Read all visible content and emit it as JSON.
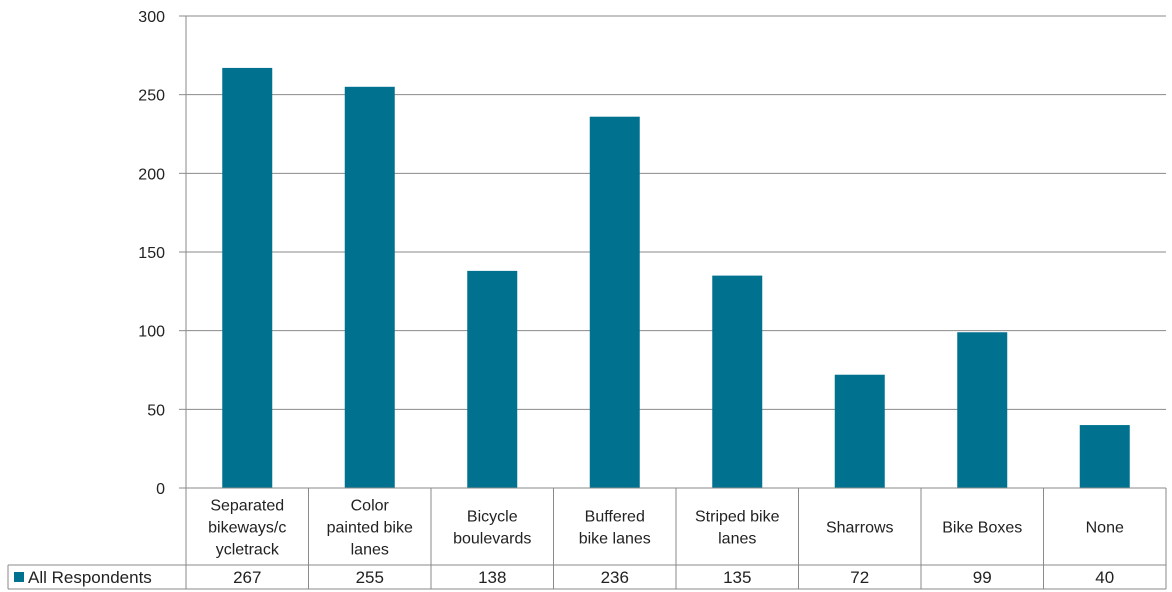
{
  "chart_data": {
    "type": "bar",
    "categories": [
      "Separated bikeways/cycletrack",
      "Color painted bike lanes",
      "Bicycle boulevards",
      "Buffered bike lanes",
      "Striped bike lanes",
      "Sharrows",
      "Bike Boxes",
      "None"
    ],
    "category_lines": [
      [
        "Separated",
        "bikeways/c",
        "ycletrack"
      ],
      [
        "Color",
        "painted bike",
        "lanes"
      ],
      [
        "Bicycle",
        "boulevards"
      ],
      [
        "Buffered",
        "bike lanes"
      ],
      [
        "Striped bike",
        "lanes"
      ],
      [
        "Sharrows"
      ],
      [
        "Bike Boxes"
      ],
      [
        "None"
      ]
    ],
    "series": [
      {
        "name": "All Respondents",
        "values": [
          267,
          255,
          138,
          236,
          135,
          72,
          99,
          40
        ],
        "color": "#00728F"
      }
    ],
    "ylim": [
      0,
      300
    ],
    "yticks": [
      0,
      50,
      100,
      150,
      200,
      250,
      300
    ],
    "grid": true,
    "legend": "data-table",
    "title": "",
    "xlabel": "",
    "ylabel": ""
  }
}
